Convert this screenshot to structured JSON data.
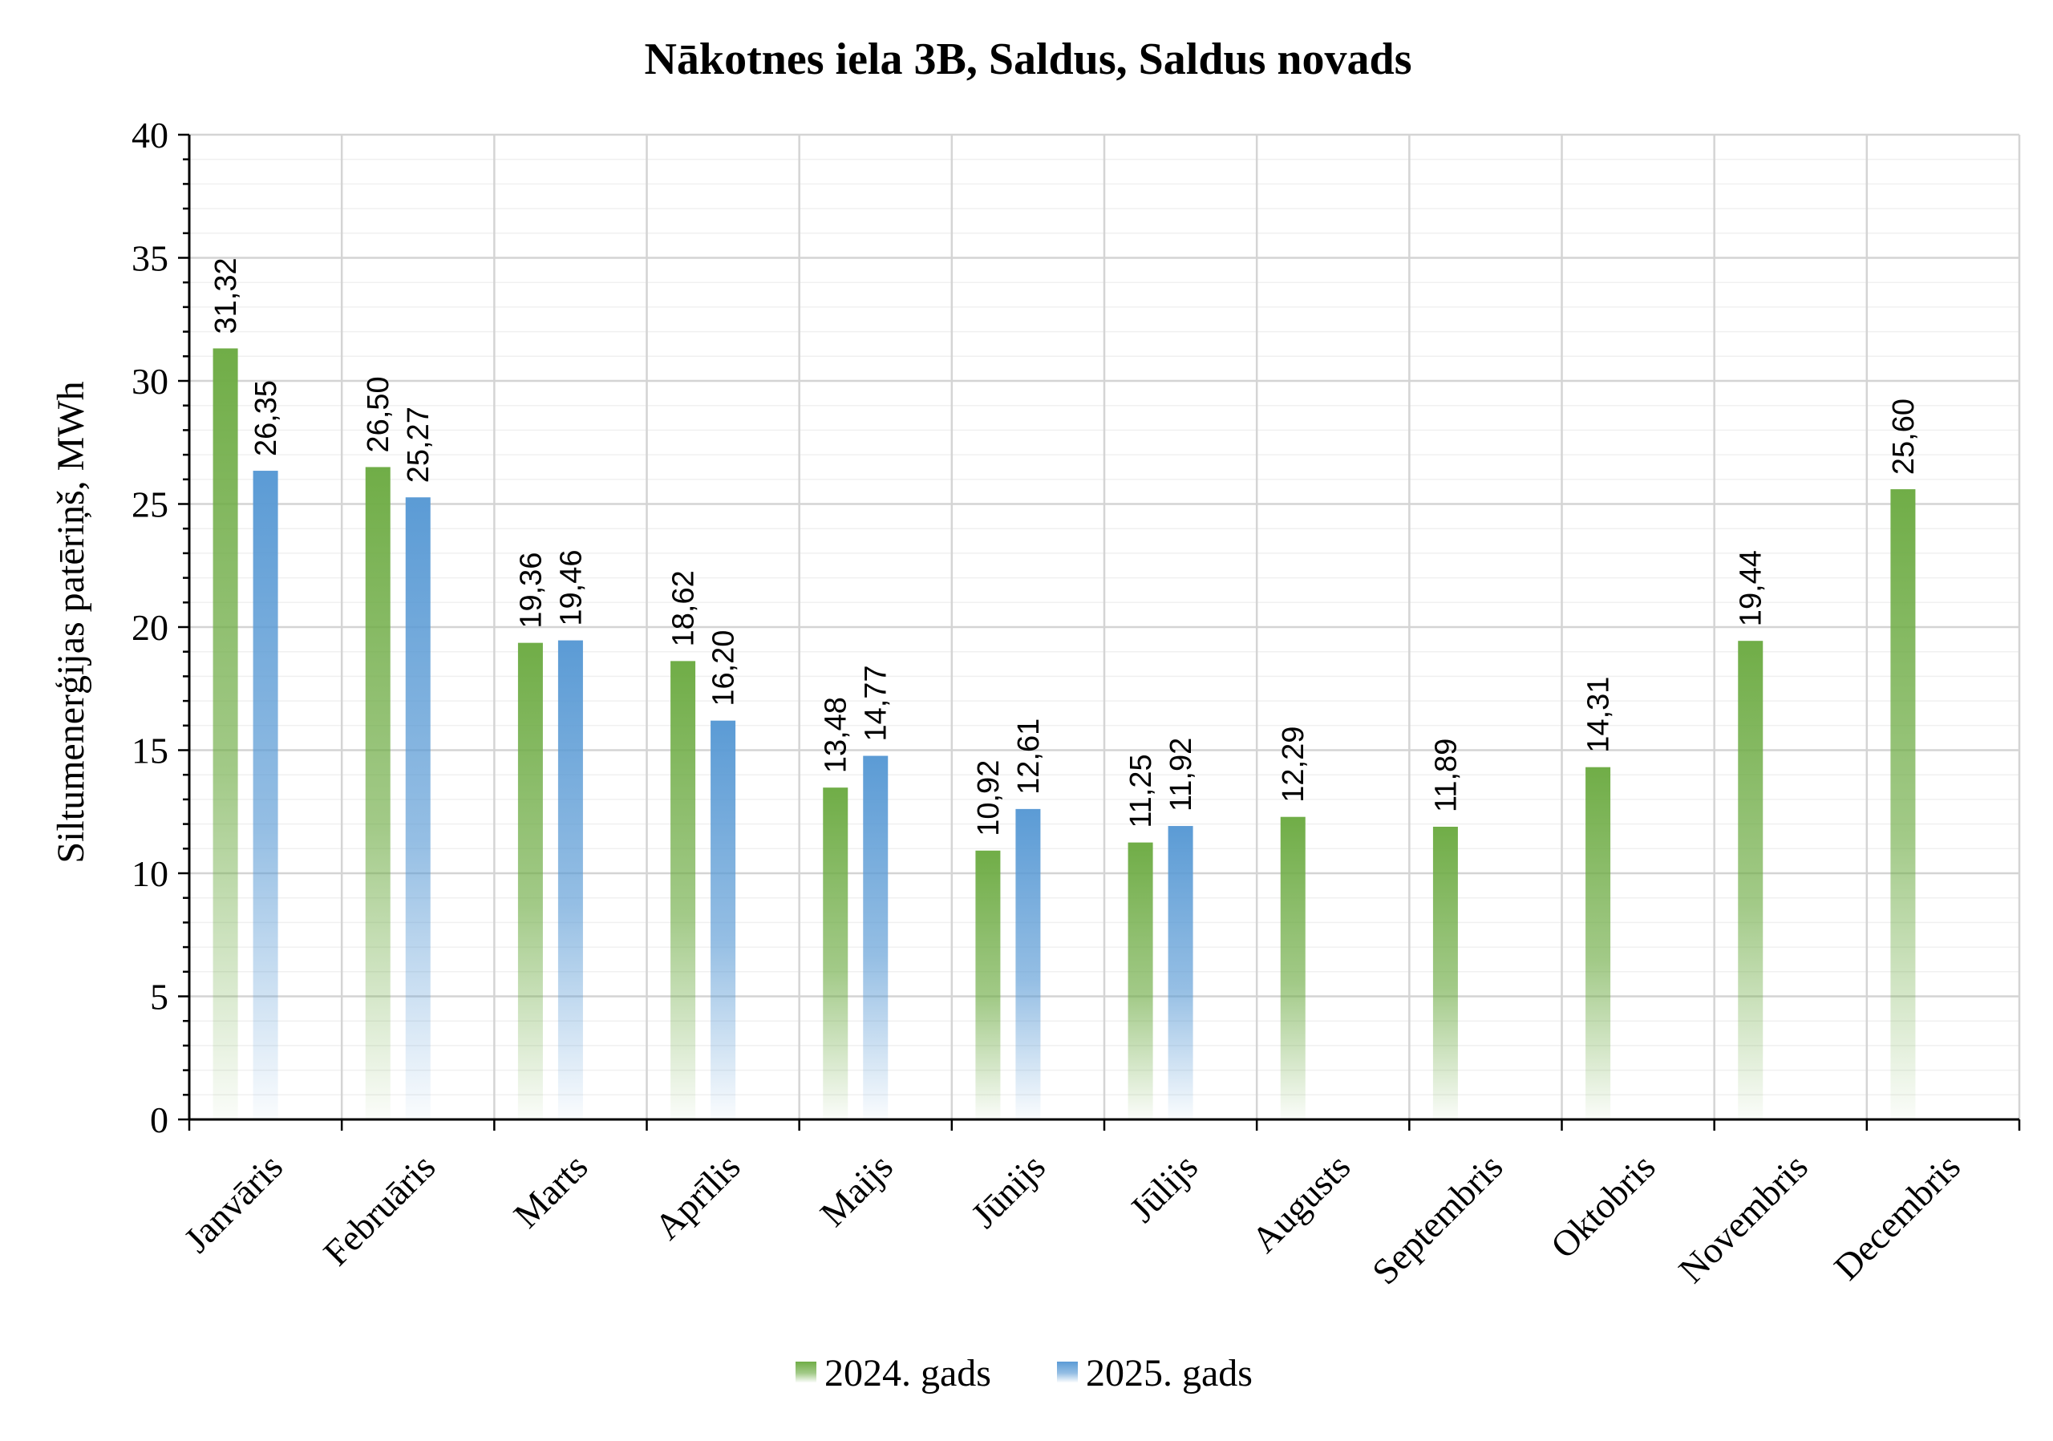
{
  "chart_data": {
    "type": "bar",
    "title": "Nākotnes iela 3B, Saldus, Saldus novads",
    "ylabel": "Siltumenerģijas patēriņš, MWh",
    "xlabel": "",
    "ylim": [
      0,
      40
    ],
    "yticks": [
      "0",
      "5",
      "10",
      "15",
      "20",
      "25",
      "30",
      "35",
      "40"
    ],
    "grid": true,
    "legend_position": "bottom",
    "categories": [
      "Janvāris",
      "Februāris",
      "Marts",
      "Aprīlis",
      "Maijs",
      "Jūnijs",
      "Jūlijs",
      "Augusts",
      "Septembris",
      "Oktobris",
      "Novembris",
      "Decembris"
    ],
    "series": [
      {
        "name": "2024. gads",
        "color": "#70ad47",
        "values": [
          31.32,
          26.5,
          19.36,
          18.62,
          13.48,
          10.92,
          11.25,
          12.29,
          11.89,
          14.31,
          19.44,
          25.6
        ],
        "labels": [
          "31,32",
          "26,50",
          "19,36",
          "18,62",
          "13,48",
          "10,92",
          "11,25",
          "12,29",
          "11,89",
          "14,31",
          "19,44",
          "25,60"
        ]
      },
      {
        "name": "2025. gads",
        "color": "#5b9bd5",
        "values": [
          26.35,
          25.27,
          19.46,
          16.2,
          14.77,
          12.61,
          11.92,
          null,
          null,
          null,
          null,
          null
        ],
        "labels": [
          "26,35",
          "25,27",
          "19,46",
          "16,20",
          "14,77",
          "12,61",
          "11,92",
          null,
          null,
          null,
          null,
          null
        ]
      }
    ]
  }
}
